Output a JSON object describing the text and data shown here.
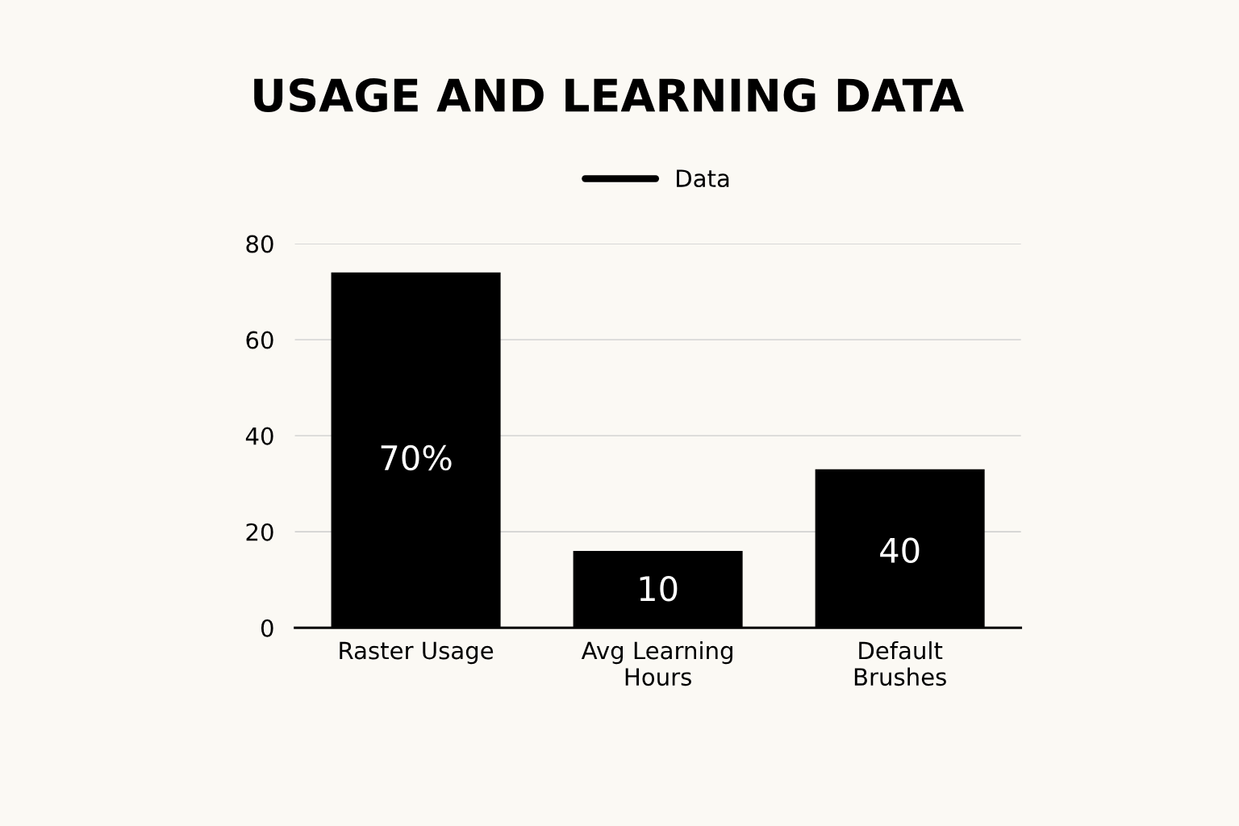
{
  "chart_data": {
    "type": "bar",
    "title": "USAGE AND LEARNING DATA",
    "categories": [
      "Raster Usage",
      "Avg Learning Hours",
      "Default Brushes"
    ],
    "series": [
      {
        "name": "Data",
        "color": "#000000",
        "values": [
          74,
          16,
          33
        ]
      }
    ],
    "annotations": [
      "70%",
      "10",
      "40"
    ],
    "ylim": [
      0,
      80
    ],
    "yticks": [
      0,
      20,
      40,
      60,
      80
    ],
    "grid": "y",
    "legend": "top"
  }
}
